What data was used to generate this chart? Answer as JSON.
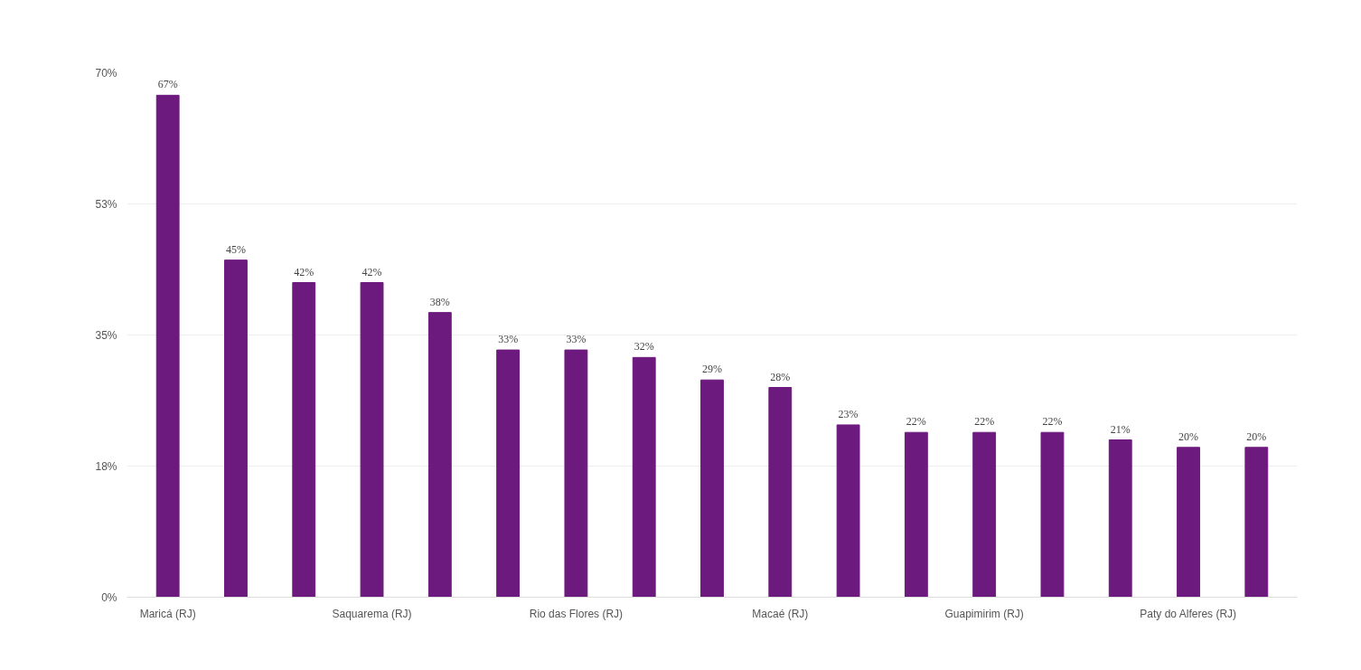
{
  "chart_data": {
    "type": "bar",
    "categories": [
      "Maricá (RJ)",
      null,
      null,
      "Saquarema (RJ)",
      null,
      null,
      "Rio das Flores (RJ)",
      null,
      null,
      "Macaé (RJ)",
      null,
      null,
      "Guapimirim (RJ)",
      null,
      null,
      "Paty do Alferes (RJ)",
      null
    ],
    "values": [
      67,
      45,
      42,
      42,
      38,
      33,
      33,
      32,
      29,
      28,
      23,
      22,
      22,
      22,
      21,
      20,
      20
    ],
    "value_labels": [
      "67%",
      "45%",
      "42%",
      "42%",
      "38%",
      "33%",
      "33%",
      "32%",
      "29%",
      "28%",
      "23%",
      "22%",
      "22%",
      "22%",
      "21%",
      "20%",
      "20%"
    ],
    "color": "#6d1a7e",
    "ylim": [
      0,
      70
    ],
    "yticks": [
      {
        "value": 0,
        "label": "0%"
      },
      {
        "value": 17.5,
        "label": "18%"
      },
      {
        "value": 35,
        "label": "35%"
      },
      {
        "value": 52.5,
        "label": "53%"
      },
      {
        "value": 70,
        "label": "70%"
      }
    ],
    "grid": "y"
  }
}
